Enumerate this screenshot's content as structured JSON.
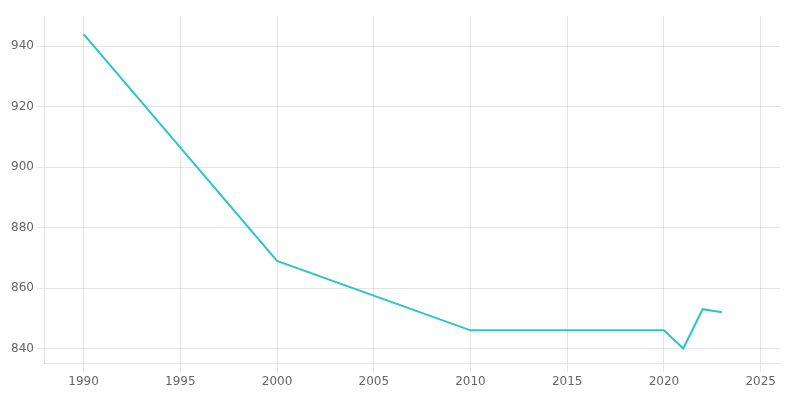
{
  "chart_data": {
    "type": "line",
    "x": [
      1990,
      2000,
      2010,
      2020,
      2021,
      2022,
      2023
    ],
    "values": [
      944,
      869,
      846,
      846,
      840,
      853,
      852
    ],
    "color": "#2EC4C4",
    "xlim": [
      1988,
      2026
    ],
    "ylim": [
      835,
      950
    ],
    "xticks": [
      1990,
      1995,
      2000,
      2005,
      2010,
      2015,
      2020,
      2025
    ],
    "yticks": [
      840,
      860,
      880,
      900,
      920,
      940
    ],
    "grid": true
  }
}
